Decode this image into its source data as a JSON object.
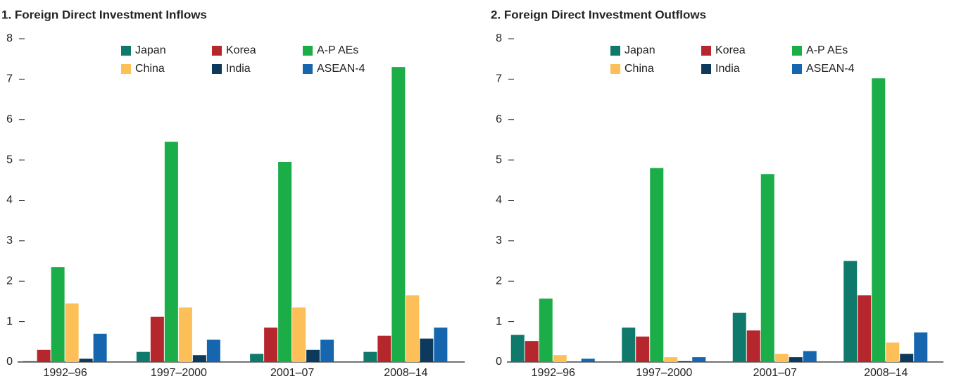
{
  "chart_data": [
    {
      "type": "bar",
      "title": "1. Foreign Direct Investment Inflows",
      "categories": [
        "1992–96",
        "1997–2000",
        "2001–07",
        "2008–14"
      ],
      "series": [
        {
          "name": "Japan",
          "color": "#0f7a6b",
          "values": [
            0.02,
            0.25,
            0.2,
            0.25
          ]
        },
        {
          "name": "Korea",
          "color": "#b5272d",
          "values": [
            0.3,
            1.12,
            0.85,
            0.65
          ]
        },
        {
          "name": "A-P AEs",
          "color": "#1aad48",
          "values": [
            2.35,
            5.45,
            4.95,
            7.3
          ]
        },
        {
          "name": "China",
          "color": "#fdbf57",
          "values": [
            1.45,
            1.35,
            1.35,
            1.65
          ]
        },
        {
          "name": "India",
          "color": "#0d3a5c",
          "values": [
            0.08,
            0.17,
            0.3,
            0.58
          ]
        },
        {
          "name": "ASEAN-4",
          "color": "#1566ae",
          "values": [
            0.7,
            0.55,
            0.55,
            0.85
          ]
        }
      ],
      "ylim": [
        0,
        8
      ],
      "yticks": [
        0,
        1,
        2,
        3,
        4,
        5,
        6,
        7,
        8
      ],
      "legend": "top"
    },
    {
      "type": "bar",
      "title": "2. Foreign Direct Investment Outflows",
      "categories": [
        "1992–96",
        "1997–2000",
        "2001–07",
        "2008–14"
      ],
      "series": [
        {
          "name": "Japan",
          "color": "#0f7a6b",
          "values": [
            0.67,
            0.85,
            1.22,
            2.5
          ]
        },
        {
          "name": "Korea",
          "color": "#b5272d",
          "values": [
            0.52,
            0.63,
            0.78,
            1.65
          ]
        },
        {
          "name": "A-P AEs",
          "color": "#1aad48",
          "values": [
            1.57,
            4.8,
            4.65,
            7.02
          ]
        },
        {
          "name": "China",
          "color": "#fdbf57",
          "values": [
            0.17,
            0.12,
            0.2,
            0.48
          ]
        },
        {
          "name": "India",
          "color": "#0d3a5c",
          "values": [
            0.01,
            0.02,
            0.12,
            0.2
          ]
        },
        {
          "name": "ASEAN-4",
          "color": "#1566ae",
          "values": [
            0.08,
            0.12,
            0.27,
            0.73
          ]
        }
      ],
      "ylim": [
        0,
        8
      ],
      "yticks": [
        0,
        1,
        2,
        3,
        4,
        5,
        6,
        7,
        8
      ],
      "legend": "top"
    }
  ]
}
